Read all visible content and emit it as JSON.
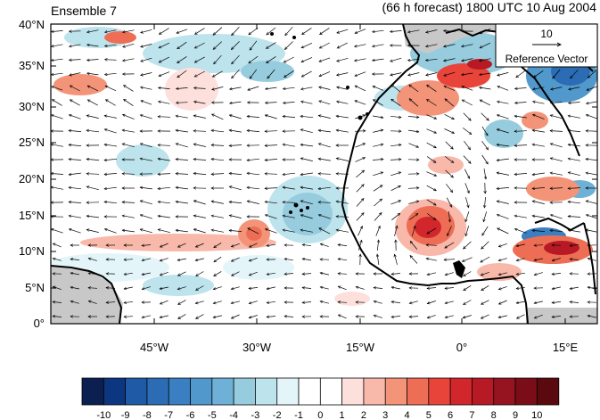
{
  "header": {
    "left_title": "Ensemble 7",
    "right_title": "(66 h forecast) 1800 UTC 10 Aug 2004"
  },
  "map": {
    "lat_labels": [
      "0°",
      "5°N",
      "10°N",
      "15°N",
      "20°N",
      "25°N",
      "30°N",
      "35°N",
      "40°N"
    ],
    "lon_labels": [
      "45°W",
      "30°W",
      "15°W",
      "0°",
      "15°E"
    ],
    "land_color": "#c8c8c8",
    "coast_color": "#000000",
    "vector_color": "#000000"
  },
  "reference_vector": {
    "magnitude": "10",
    "label": "Reference Vector"
  },
  "colorbar": {
    "labels": [
      "-10",
      "-9",
      "-8",
      "-7",
      "-6",
      "-5",
      "-4",
      "-3",
      "-2",
      "-1",
      "0",
      "1",
      "2",
      "3",
      "4",
      "5",
      "6",
      "7",
      "8",
      "9",
      "10"
    ],
    "colors": [
      "#0b2050",
      "#0d3680",
      "#1e5aa6",
      "#2b6cb4",
      "#3a7fc1",
      "#5199cc",
      "#6fb0d6",
      "#96ccdd",
      "#bde3ec",
      "#e4f5fa",
      "#ffffff",
      "#ffffff",
      "#fde0dc",
      "#f8b8aa",
      "#f39479",
      "#ee6e55",
      "#e8443a",
      "#d1272c",
      "#b81a25",
      "#961320",
      "#7a0d17",
      "#5a0a0f"
    ]
  }
}
